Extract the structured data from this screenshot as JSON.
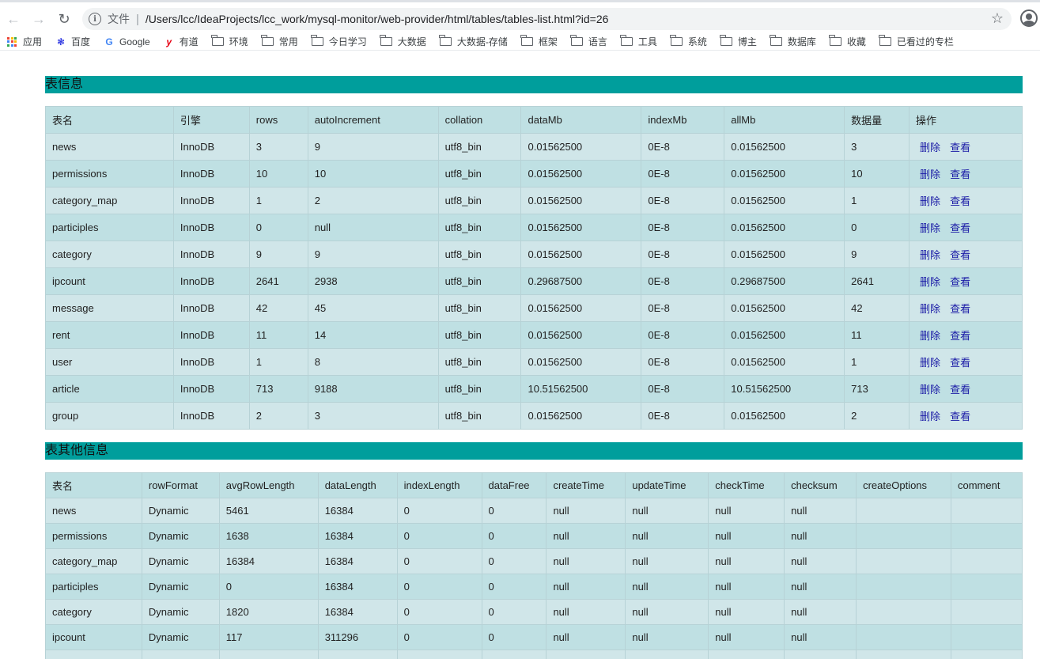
{
  "browser": {
    "omnibox": {
      "file_label": "文件",
      "separator": "|",
      "url": "/Users/lcc/IdeaProjects/lcc_work/mysql-monitor/web-provider/html/tables/tables-list.html?id=26"
    },
    "bookmarks": [
      {
        "label": "应用",
        "icon": "apps-icon"
      },
      {
        "label": "百度",
        "icon": "baidu-icon"
      },
      {
        "label": "Google",
        "icon": "google-icon"
      },
      {
        "label": "有道",
        "icon": "youdao-icon"
      },
      {
        "label": "环境",
        "icon": "folder-icon"
      },
      {
        "label": "常用",
        "icon": "folder-icon"
      },
      {
        "label": "今日学习",
        "icon": "folder-icon"
      },
      {
        "label": "大数据",
        "icon": "folder-icon"
      },
      {
        "label": "大数据-存储",
        "icon": "folder-icon"
      },
      {
        "label": "框架",
        "icon": "folder-icon"
      },
      {
        "label": "语言",
        "icon": "folder-icon"
      },
      {
        "label": "工具",
        "icon": "folder-icon"
      },
      {
        "label": "系统",
        "icon": "folder-icon"
      },
      {
        "label": "博主",
        "icon": "folder-icon"
      },
      {
        "label": "数据库",
        "icon": "folder-icon"
      },
      {
        "label": "收藏",
        "icon": "folder-icon"
      },
      {
        "label": "已看过的专栏",
        "icon": "folder-icon"
      }
    ]
  },
  "colors": {
    "section_header_bg": "#009e9c",
    "row_odd": "#bfe0e3",
    "row_even": "#d0e6e9",
    "link": "#1a1aa6"
  },
  "table_info": {
    "title": "表信息",
    "columns": [
      "表名",
      "引擎",
      "rows",
      "autoIncrement",
      "collation",
      "dataMb",
      "indexMb",
      "allMb",
      "数据量",
      "操作"
    ],
    "delete_label": "删除",
    "view_label": "查看",
    "rows": [
      [
        "news",
        "InnoDB",
        "3",
        "9",
        "utf8_bin",
        "0.01562500",
        "0E-8",
        "0.01562500",
        "3"
      ],
      [
        "permissions",
        "InnoDB",
        "10",
        "10",
        "utf8_bin",
        "0.01562500",
        "0E-8",
        "0.01562500",
        "10"
      ],
      [
        "category_map",
        "InnoDB",
        "1",
        "2",
        "utf8_bin",
        "0.01562500",
        "0E-8",
        "0.01562500",
        "1"
      ],
      [
        "participles",
        "InnoDB",
        "0",
        "null",
        "utf8_bin",
        "0.01562500",
        "0E-8",
        "0.01562500",
        "0"
      ],
      [
        "category",
        "InnoDB",
        "9",
        "9",
        "utf8_bin",
        "0.01562500",
        "0E-8",
        "0.01562500",
        "9"
      ],
      [
        "ipcount",
        "InnoDB",
        "2641",
        "2938",
        "utf8_bin",
        "0.29687500",
        "0E-8",
        "0.29687500",
        "2641"
      ],
      [
        "message",
        "InnoDB",
        "42",
        "45",
        "utf8_bin",
        "0.01562500",
        "0E-8",
        "0.01562500",
        "42"
      ],
      [
        "rent",
        "InnoDB",
        "11",
        "14",
        "utf8_bin",
        "0.01562500",
        "0E-8",
        "0.01562500",
        "11"
      ],
      [
        "user",
        "InnoDB",
        "1",
        "8",
        "utf8_bin",
        "0.01562500",
        "0E-8",
        "0.01562500",
        "1"
      ],
      [
        "article",
        "InnoDB",
        "713",
        "9188",
        "utf8_bin",
        "10.51562500",
        "0E-8",
        "10.51562500",
        "713"
      ],
      [
        "group",
        "InnoDB",
        "2",
        "3",
        "utf8_bin",
        "0.01562500",
        "0E-8",
        "0.01562500",
        "2"
      ]
    ]
  },
  "table_other": {
    "title": "表其他信息",
    "columns": [
      "表名",
      "rowFormat",
      "avgRowLength",
      "dataLength",
      "indexLength",
      "dataFree",
      "createTime",
      "updateTime",
      "checkTime",
      "checksum",
      "createOptions",
      "comment"
    ],
    "rows": [
      [
        "news",
        "Dynamic",
        "5461",
        "16384",
        "0",
        "0",
        "null",
        "null",
        "null",
        "null",
        "",
        ""
      ],
      [
        "permissions",
        "Dynamic",
        "1638",
        "16384",
        "0",
        "0",
        "null",
        "null",
        "null",
        "null",
        "",
        ""
      ],
      [
        "category_map",
        "Dynamic",
        "16384",
        "16384",
        "0",
        "0",
        "null",
        "null",
        "null",
        "null",
        "",
        ""
      ],
      [
        "participles",
        "Dynamic",
        "0",
        "16384",
        "0",
        "0",
        "null",
        "null",
        "null",
        "null",
        "",
        ""
      ],
      [
        "category",
        "Dynamic",
        "1820",
        "16384",
        "0",
        "0",
        "null",
        "null",
        "null",
        "null",
        "",
        ""
      ],
      [
        "ipcount",
        "Dynamic",
        "117",
        "311296",
        "0",
        "0",
        "null",
        "null",
        "null",
        "null",
        "",
        ""
      ],
      [
        "",
        "",
        "",
        "",
        "",
        "",
        "",
        "",
        "",
        "",
        "",
        ""
      ]
    ]
  }
}
